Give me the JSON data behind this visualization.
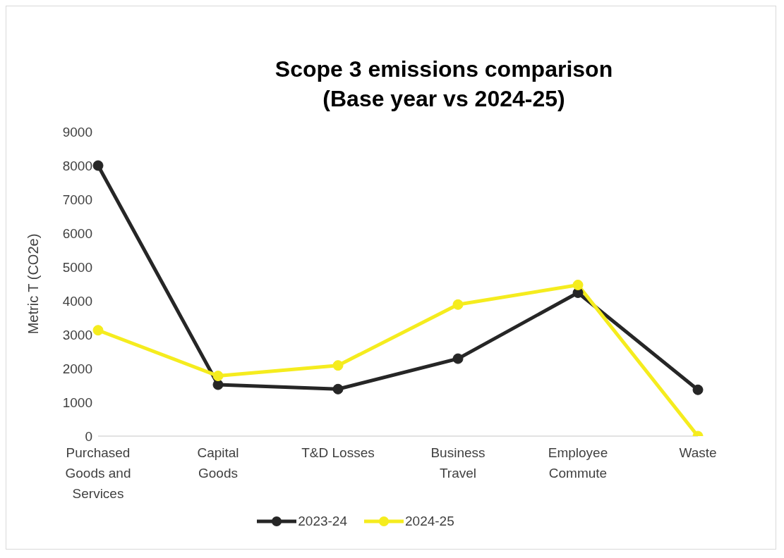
{
  "chart_data": {
    "type": "line",
    "title": "Scope 3 emissions comparison\n(Base year vs 2024-25)",
    "ylabel": "Metric T (CO2e)",
    "categories": [
      "Purchased Goods and Services",
      "Capital Goods",
      "T&D Losses",
      "Business Travel",
      "Employee Commute",
      "Waste"
    ],
    "series": [
      {
        "name": "2023-24",
        "color": "#262626",
        "values": [
          8000,
          1520,
          1390,
          2290,
          4240,
          1370
        ]
      },
      {
        "name": "2024-25",
        "color": "#f5ec1e",
        "values": [
          3130,
          1780,
          2090,
          3890,
          4470,
          0
        ]
      }
    ],
    "ylim": [
      0,
      9000
    ],
    "yticks": [
      0,
      1000,
      2000,
      3000,
      4000,
      5000,
      6000,
      7000,
      8000,
      9000
    ],
    "grid": false,
    "legend": "bottom",
    "marker": "circle",
    "line_style": "solid"
  }
}
